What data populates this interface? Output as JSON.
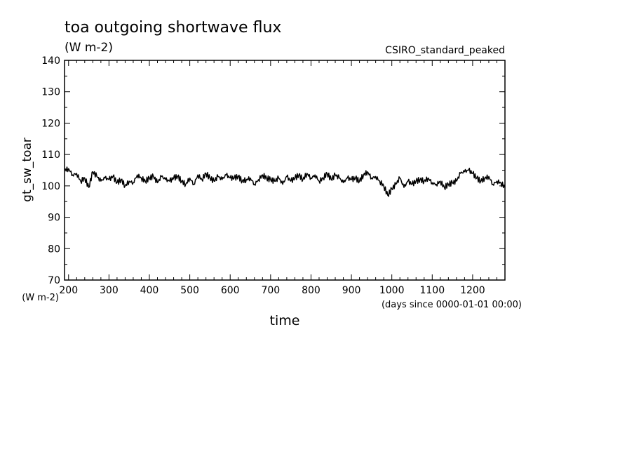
{
  "chart_data": {
    "type": "line",
    "title": "toa outgoing shortwave flux",
    "subtitle": "(W m-2)",
    "model_label": "CSIRO_standard_peaked",
    "xlabel": "time",
    "x_units": "(days since 0000-01-01 00:00)",
    "ylabel": "gt_sw_toar",
    "y_units": "(W m-2)",
    "xlim": [
      190,
      1280
    ],
    "ylim": [
      70,
      140
    ],
    "x_ticks": [
      200,
      300,
      400,
      500,
      600,
      700,
      800,
      900,
      1000,
      1100,
      1200
    ],
    "y_ticks": [
      70,
      80,
      90,
      100,
      110,
      120,
      130,
      140
    ],
    "grid": false,
    "line_color": "#000000",
    "series": [
      {
        "x": [
          190,
          200,
          210,
          220,
          230,
          240,
          250,
          260,
          270,
          280,
          290,
          300,
          310,
          320,
          330,
          340,
          350,
          360,
          370,
          380,
          390,
          400,
          410,
          420,
          430,
          440,
          450,
          460,
          470,
          480,
          490,
          500,
          510,
          520,
          530,
          540,
          550,
          560,
          570,
          580,
          590,
          600,
          610,
          620,
          630,
          640,
          650,
          660,
          670,
          680,
          690,
          700,
          710,
          720,
          730,
          740,
          750,
          760,
          770,
          780,
          790,
          800,
          810,
          820,
          830,
          840,
          850,
          860,
          870,
          880,
          890,
          900,
          910,
          920,
          930,
          940,
          950,
          960,
          970,
          980,
          990,
          1000,
          1010,
          1020,
          1030,
          1040,
          1050,
          1060,
          1070,
          1080,
          1090,
          1100,
          1110,
          1120,
          1130,
          1140,
          1150,
          1160,
          1170,
          1180,
          1190,
          1200,
          1210,
          1220,
          1230,
          1240,
          1250,
          1260,
          1270,
          1280
        ],
        "values": [
          105,
          105.5,
          103.5,
          104,
          101.5,
          102.5,
          99.5,
          104.5,
          103,
          101.5,
          102.5,
          102,
          103,
          101,
          102,
          100,
          101.5,
          101,
          103.5,
          102.5,
          101.5,
          102.5,
          103,
          101,
          103,
          102,
          101.5,
          102.5,
          103,
          101.5,
          100.5,
          102.5,
          100.5,
          103.5,
          102,
          104,
          102.5,
          101.5,
          103,
          102,
          103.5,
          102.5,
          102.5,
          103,
          101.5,
          102,
          102.5,
          100.5,
          102,
          103.5,
          102.5,
          102,
          101.5,
          102.5,
          100.5,
          103,
          101.5,
          102.5,
          103.5,
          102,
          104,
          102.5,
          103.5,
          101.5,
          102.5,
          104,
          102,
          103.5,
          102.5,
          101,
          102.5,
          102,
          102.5,
          101.5,
          103.5,
          104.5,
          102.5,
          103,
          101.5,
          100,
          97,
          99,
          100.5,
          102.5,
          99.5,
          101.5,
          100.5,
          101.5,
          102,
          101.5,
          102.5,
          101,
          100.5,
          101.5,
          99.5,
          100.5,
          101,
          101.5,
          104,
          104.5,
          105,
          104,
          102.5,
          101.5,
          102.5,
          103,
          100.5,
          101.5,
          101,
          99.5
        ]
      }
    ]
  }
}
